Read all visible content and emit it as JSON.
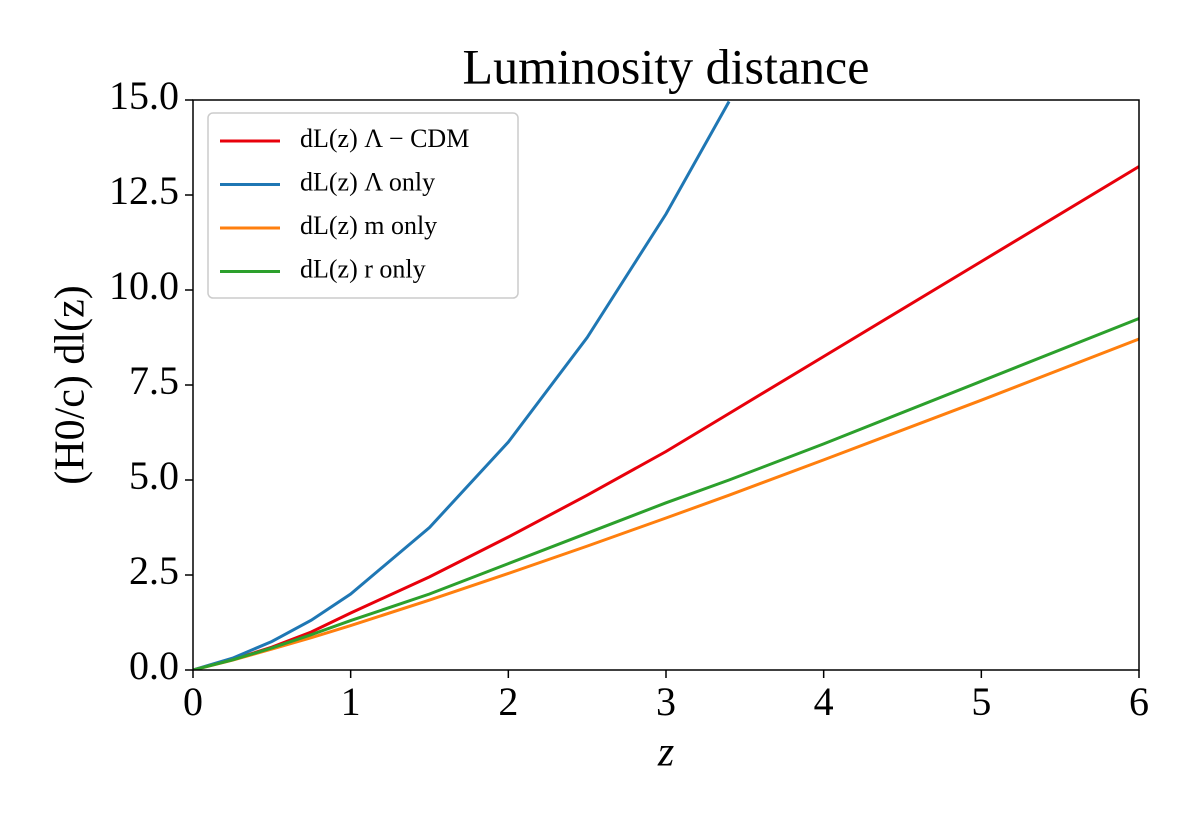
{
  "chart_data": {
    "type": "line",
    "title": "Luminosity distance",
    "x_label": "z",
    "y_label": "(H0/c) dl(z)",
    "x": [
      0,
      0.25,
      0.5,
      0.75,
      1,
      1.5,
      2,
      2.5,
      3,
      3.4,
      4,
      5,
      6
    ],
    "series": [
      {
        "name": "dL(z) Λ − CDM",
        "color": "#e8000b",
        "values": [
          0,
          0.27,
          0.6,
          1.0,
          1.5,
          2.45,
          3.5,
          4.6,
          5.75,
          6.75,
          8.25,
          10.75,
          13.25
        ]
      },
      {
        "name": "dL(z) Λ only",
        "color": "#1f77b4",
        "values": [
          0,
          0.31,
          0.75,
          1.31,
          2,
          3.75,
          6,
          8.75,
          12,
          14.96,
          null,
          null,
          null
        ]
      },
      {
        "name": "dL(z) m only",
        "color": "#ff7f0e",
        "values": [
          0,
          0.26,
          0.55,
          0.85,
          1.17,
          1.84,
          2.54,
          3.26,
          4.0,
          4.6,
          5.53,
          7.1,
          8.71
        ]
      },
      {
        "name": "dL(z) r only",
        "color": "#2ca02c",
        "values": [
          0,
          0.265,
          0.58,
          0.93,
          1.3,
          2.0,
          2.8,
          3.6,
          4.4,
          5.0,
          5.95,
          7.6,
          9.25
        ]
      }
    ],
    "xlim": [
      0,
      6
    ],
    "ylim": [
      0,
      15
    ],
    "xticks": [
      0,
      1,
      2,
      3,
      4,
      5,
      6
    ],
    "yticks": [
      {
        "value": 0,
        "label": "0.0"
      },
      {
        "value": 2.5,
        "label": "2.5"
      },
      {
        "value": 5,
        "label": "5.0"
      },
      {
        "value": 7.5,
        "label": "7.5"
      },
      {
        "value": 10,
        "label": "10.0"
      },
      {
        "value": 12.5,
        "label": "12.5"
      },
      {
        "value": 15,
        "label": "15.0"
      }
    ],
    "legend": "upper left",
    "grid": false
  }
}
